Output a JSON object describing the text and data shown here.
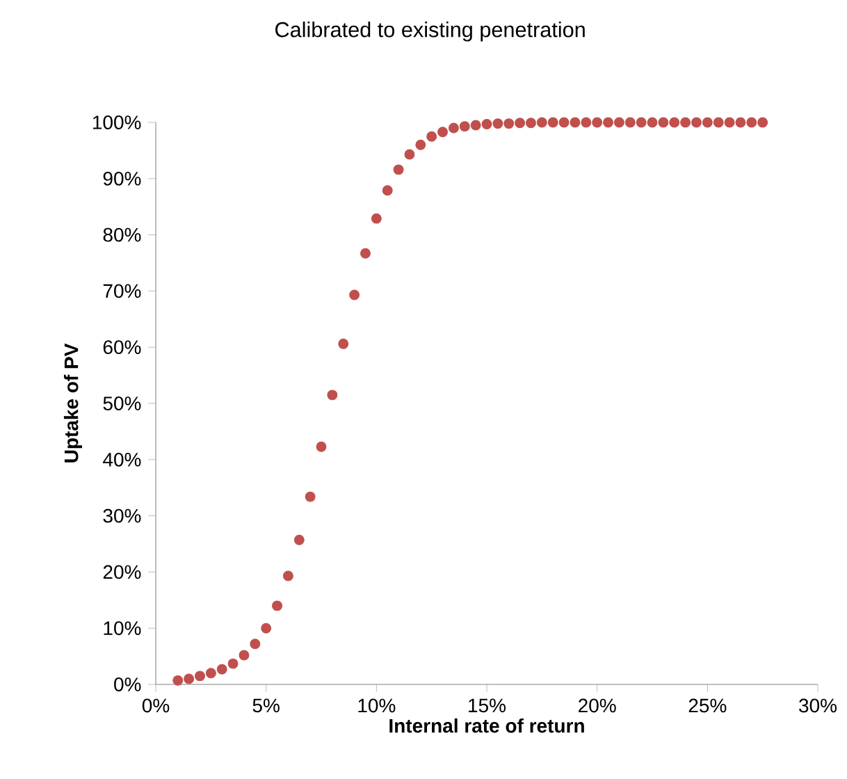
{
  "chart_data": {
    "type": "scatter",
    "title": "Calibrated to existing penetration",
    "xlabel": "Internal rate of return",
    "ylabel": "Uptake of PV",
    "x": [
      1,
      1.5,
      2,
      2.5,
      3,
      3.5,
      4,
      4.5,
      5,
      5.5,
      6,
      6.5,
      7,
      7.5,
      8,
      8.5,
      9,
      9.5,
      10,
      10.5,
      11,
      11.5,
      12,
      12.5,
      13,
      13.5,
      14,
      14.5,
      15,
      15.5,
      16,
      16.5,
      17,
      17.5,
      18,
      18.5,
      19,
      19.5,
      20,
      20.5,
      21,
      21.5,
      22,
      22.5,
      23,
      23.5,
      24,
      24.5,
      25,
      25.5,
      26,
      26.5,
      27,
      27.5
    ],
    "series": [
      {
        "color": "#c0504d",
        "values": [
          0.7,
          1,
          1.5,
          2,
          2.7,
          3.7,
          5.2,
          7.2,
          10,
          14,
          19.3,
          25.7,
          33.4,
          42.3,
          51.5,
          60.6,
          69.3,
          76.7,
          82.9,
          87.9,
          91.6,
          94.3,
          96,
          97.5,
          98.3,
          99,
          99.3,
          99.5,
          99.7,
          99.8,
          99.8,
          99.9,
          99.9,
          100,
          100,
          100,
          100,
          100,
          100,
          100,
          100,
          100,
          100,
          100,
          100,
          100,
          100,
          100,
          100,
          100,
          100,
          100,
          100,
          100
        ]
      }
    ],
    "xlim": [
      0,
      30
    ],
    "ylim": [
      0,
      100
    ],
    "xticks": [
      {
        "value": 0,
        "label": "0%"
      },
      {
        "value": 5,
        "label": "5%"
      },
      {
        "value": 10,
        "label": "10%"
      },
      {
        "value": 15,
        "label": "15%"
      },
      {
        "value": 20,
        "label": "20%"
      },
      {
        "value": 25,
        "label": "25%"
      },
      {
        "value": 30,
        "label": "30%"
      }
    ],
    "yticks": [
      {
        "value": 0,
        "label": "0%"
      },
      {
        "value": 10,
        "label": "10%"
      },
      {
        "value": 20,
        "label": "20%"
      },
      {
        "value": 30,
        "label": "30%"
      },
      {
        "value": 40,
        "label": "40%"
      },
      {
        "value": 50,
        "label": "50%"
      },
      {
        "value": 60,
        "label": "60%"
      },
      {
        "value": 70,
        "label": "70%"
      },
      {
        "value": 80,
        "label": "80%"
      },
      {
        "value": 90,
        "label": "90%"
      },
      {
        "value": 100,
        "label": "100%"
      }
    ],
    "grid": false
  }
}
